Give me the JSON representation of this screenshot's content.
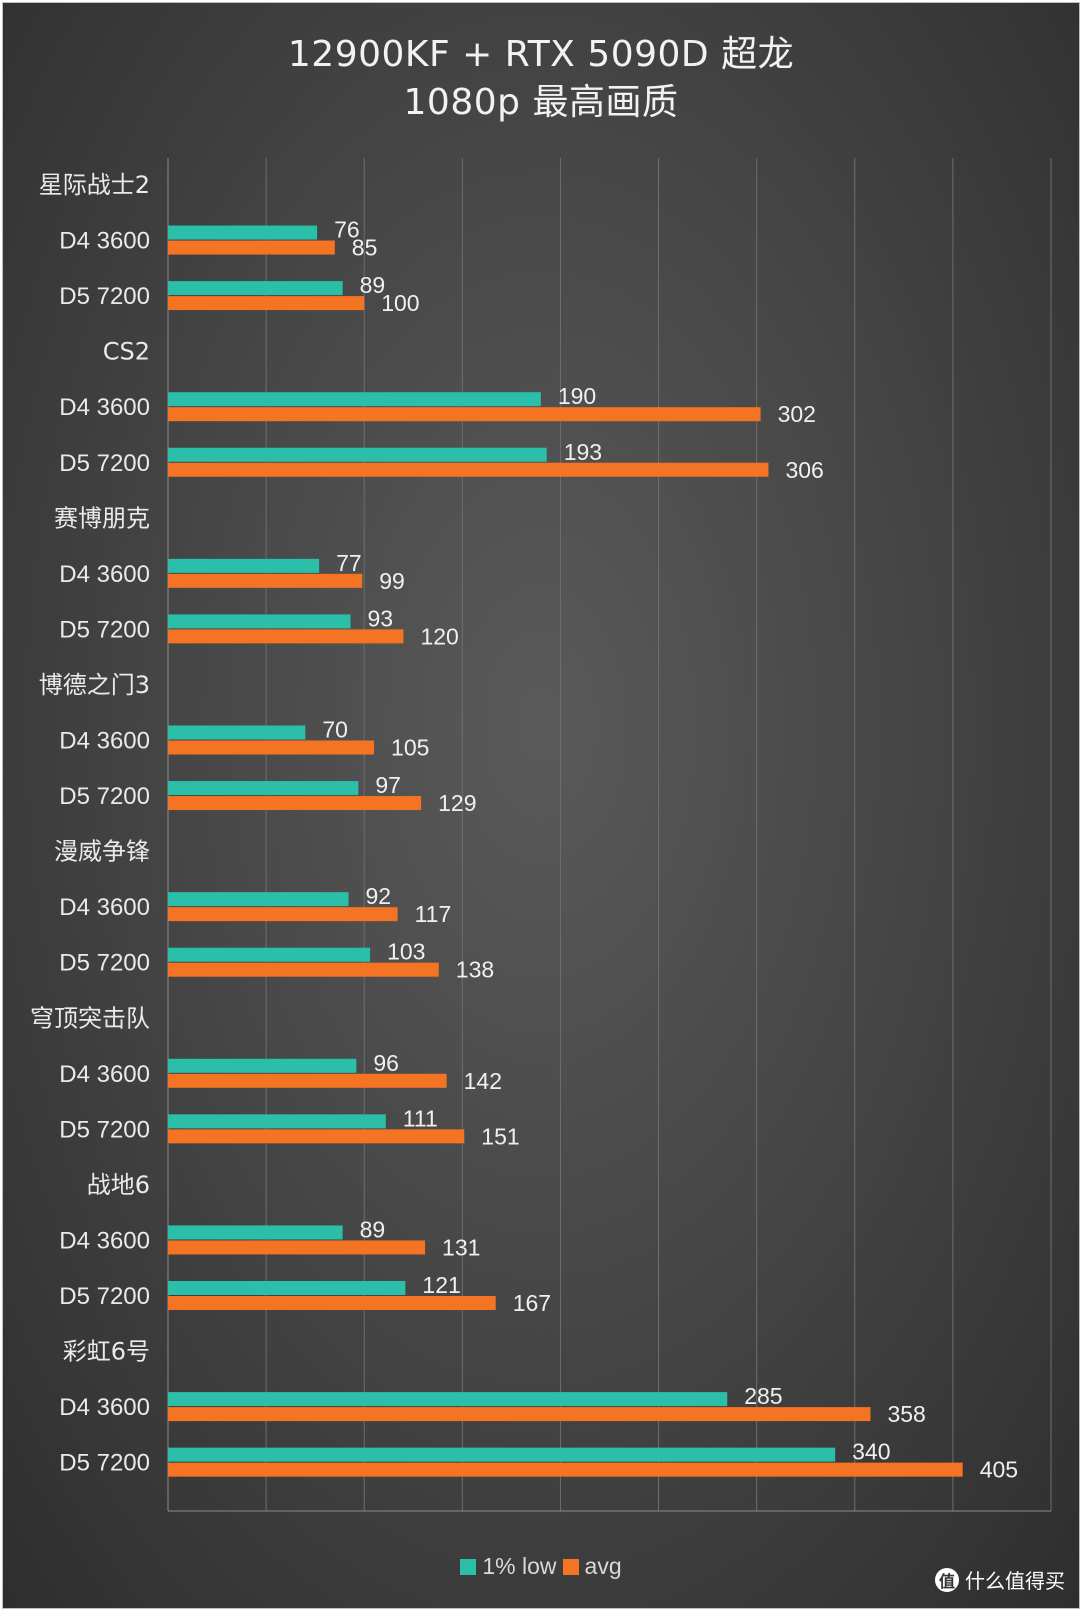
{
  "title": {
    "line1": "12900KF + RTX 5090D 超龙",
    "line2": "1080p 最高画质"
  },
  "colors": {
    "low": "#2bbfaa",
    "avg": "#f47424",
    "grid": "#6e6e6e"
  },
  "legend": {
    "items": [
      {
        "label": "1% low",
        "color": "#2bbfaa"
      },
      {
        "label": "avg",
        "color": "#f47424"
      }
    ]
  },
  "watermark": {
    "logo": "值",
    "text": "什么值得买"
  },
  "chart_data": {
    "type": "bar",
    "orientation": "horizontal",
    "grid": true,
    "legend_position": "bottom",
    "xlim": [
      0,
      450
    ],
    "x_step": 50,
    "series_names": [
      "1% low",
      "avg"
    ],
    "groups": [
      {
        "name": "星际战士2",
        "rows": [
          {
            "label": "D4 3600",
            "low": 76,
            "avg": 85
          },
          {
            "label": "D5 7200",
            "low": 89,
            "avg": 100
          }
        ]
      },
      {
        "name": "CS2",
        "rows": [
          {
            "label": "D4 3600",
            "low": 190,
            "avg": 302
          },
          {
            "label": "D5 7200",
            "low": 193,
            "avg": 306
          }
        ]
      },
      {
        "name": "赛博朋克",
        "rows": [
          {
            "label": "D4 3600",
            "low": 77,
            "avg": 99
          },
          {
            "label": "D5 7200",
            "low": 93,
            "avg": 120
          }
        ]
      },
      {
        "name": "博德之门3",
        "rows": [
          {
            "label": "D4 3600",
            "low": 70,
            "avg": 105
          },
          {
            "label": "D5 7200",
            "low": 97,
            "avg": 129
          }
        ]
      },
      {
        "name": "漫威争锋",
        "rows": [
          {
            "label": "D4 3600",
            "low": 92,
            "avg": 117
          },
          {
            "label": "D5 7200",
            "low": 103,
            "avg": 138
          }
        ]
      },
      {
        "name": "穹顶突击队",
        "rows": [
          {
            "label": "D4 3600",
            "low": 96,
            "avg": 142
          },
          {
            "label": "D5 7200",
            "low": 111,
            "avg": 151
          }
        ]
      },
      {
        "name": "战地6",
        "rows": [
          {
            "label": "D4 3600",
            "low": 89,
            "avg": 131
          },
          {
            "label": "D5 7200",
            "low": 121,
            "avg": 167
          }
        ]
      },
      {
        "name": "彩虹6号",
        "rows": [
          {
            "label": "D4 3600",
            "low": 285,
            "avg": 358
          },
          {
            "label": "D5 7200",
            "low": 340,
            "avg": 405
          }
        ]
      }
    ]
  }
}
